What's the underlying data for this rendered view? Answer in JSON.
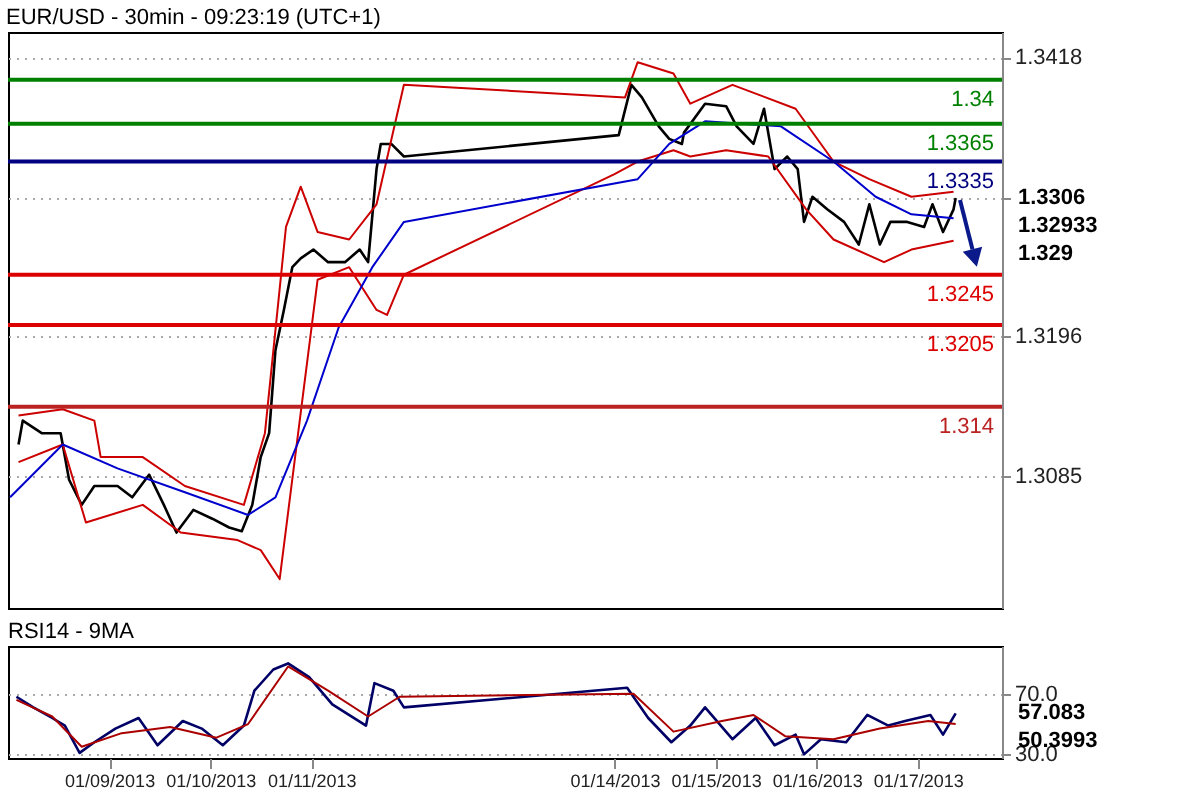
{
  "chart_data": [
    {
      "type": "line",
      "title": "EUR/USD - 30min - 09:23:19 (UTC+1)",
      "xlim": [
        "2013-01-08T00:00",
        "2013-01-17T20:00"
      ],
      "ylim": [
        1.298,
        1.3438
      ],
      "yticks": [
        1.3085,
        1.3196,
        {
          "value": 1.3306,
          "label": null
        },
        1.3418
      ],
      "grid": "y",
      "tick_labels": "y",
      "series": [
        {
          "color": "#000000",
          "x": [
            "2013-01-08T02:30",
            "2013-01-08T03:30",
            "2013-01-08T08:00",
            "2013-01-08T12:30",
            "2013-01-08T14:30",
            "2013-01-08T17:30",
            "2013-01-08T20:30",
            "2013-01-09T02:00",
            "2013-01-09T05:30",
            "2013-01-09T09:30",
            "2013-01-09T13:00",
            "2013-01-09T16:00",
            "2013-01-09T20:00",
            "2013-01-10T00:30",
            "2013-01-10T04:30",
            "2013-01-10T07:30",
            "2013-01-10T10:00",
            "2013-01-10T12:00",
            "2013-01-10T14:00",
            "2013-01-10T15:30",
            "2013-01-10T17:30",
            "2013-01-10T19:30",
            "2013-01-10T21:30",
            "2013-01-11T00:30",
            "2013-01-11T04:00",
            "2013-01-11T08:00",
            "2013-01-11T11:30",
            "2013-01-11T13:30",
            "2013-01-11T15:30",
            "2013-01-11T16:30",
            "2013-01-11T19:00",
            "2013-01-11T22:00",
            "2013-01-14T01:00",
            "2013-01-14T04:00",
            "2013-01-14T06:30",
            "2013-01-14T10:30",
            "2013-01-14T13:00",
            "2013-01-14T16:00",
            "2013-01-14T16:30",
            "2013-01-14T21:30",
            "2013-01-15T02:30",
            "2013-01-15T05:00",
            "2013-01-15T09:00",
            "2013-01-15T11:30",
            "2013-01-15T14:00",
            "2013-01-15T17:00",
            "2013-01-15T19:30",
            "2013-01-15T21:00",
            "2013-01-15T23:00",
            "2013-01-16T02:30",
            "2013-01-16T06:30",
            "2013-01-16T10:00",
            "2013-01-16T12:30",
            "2013-01-16T15:00",
            "2013-01-16T17:30",
            "2013-01-16T21:30",
            "2013-01-17T01:30",
            "2013-01-17T03:30",
            "2013-01-17T06:00",
            "2013-01-17T08:30",
            "2013-01-17T09:00"
          ],
          "values": [
            1.311,
            1.3129,
            1.3119,
            1.3119,
            1.3082,
            1.3062,
            1.3077,
            1.3077,
            1.3068,
            1.3086,
            1.3062,
            1.304,
            1.3058,
            1.3051,
            1.3044,
            1.3041,
            1.3062,
            1.31,
            1.3119,
            1.3185,
            1.3217,
            1.3251,
            1.3258,
            1.3265,
            1.3255,
            1.3255,
            1.3265,
            1.3255,
            1.3329,
            1.3349,
            1.3349,
            1.3339,
            1.3356,
            1.3396,
            1.3386,
            1.3363,
            1.3353,
            1.3349,
            1.3358,
            1.3381,
            1.3379,
            1.3363,
            1.3349,
            1.3377,
            1.3329,
            1.3339,
            1.3329,
            1.3287,
            1.3307,
            1.3297,
            1.3287,
            1.3269,
            1.3301,
            1.3269,
            1.3287,
            1.3287,
            1.3283,
            1.3301,
            1.3279,
            1.3297,
            1.3306
          ]
        },
        {
          "color": "#cc0000",
          "x": [
            "2013-01-08T02:30",
            "2013-01-08T13:00",
            "2013-01-08T20:30",
            "2013-01-08T22:00",
            "2013-01-09T08:00",
            "2013-01-09T18:00",
            "2013-01-10T08:00",
            "2013-01-10T13:00",
            "2013-01-10T18:00",
            "2013-01-10T21:30",
            "2013-01-11T01:30",
            "2013-01-11T09:00",
            "2013-01-11T15:30",
            "2013-01-11T22:00",
            "2013-01-14T02:30",
            "2013-01-14T05:30",
            "2013-01-14T14:00",
            "2013-01-14T18:00",
            "2013-01-15T04:00",
            "2013-01-15T19:00",
            "2013-01-16T04:00",
            "2013-01-16T12:30",
            "2013-01-16T22:30",
            "2013-01-17T08:30"
          ],
          "values": [
            1.3133,
            1.3138,
            1.3129,
            1.31,
            1.31,
            1.3077,
            1.3062,
            1.3119,
            1.3283,
            1.3315,
            1.3279,
            1.3273,
            1.3301,
            1.3396,
            1.3386,
            1.3414,
            1.3405,
            1.3381,
            1.3396,
            1.3377,
            1.3335,
            1.3321,
            1.3307,
            1.3311
          ]
        },
        {
          "color": "#cc0000",
          "x": [
            "2013-01-08T02:30",
            "2013-01-08T13:00",
            "2013-01-08T18:30",
            "2013-01-09T08:00",
            "2013-01-09T17:00",
            "2013-01-10T06:30",
            "2013-01-10T12:00",
            "2013-01-10T16:30",
            "2013-01-10T23:00",
            "2013-01-11T01:30",
            "2013-01-11T09:00",
            "2013-01-11T15:30",
            "2013-01-11T18:00",
            "2013-01-11T22:00",
            "2013-01-14T00:00",
            "2013-01-14T05:30",
            "2013-01-14T14:00",
            "2013-01-14T18:00",
            "2013-01-15T02:30",
            "2013-01-15T12:30",
            "2013-01-15T21:30",
            "2013-01-16T04:00",
            "2013-01-16T16:00",
            "2013-01-16T22:30",
            "2013-01-17T08:30"
          ],
          "values": [
            1.3096,
            1.311,
            1.3048,
            1.3062,
            1.304,
            1.3034,
            1.3026,
            1.3003,
            1.3175,
            1.3241,
            1.3251,
            1.3217,
            1.3213,
            1.3245,
            1.3325,
            1.3335,
            1.3344,
            1.3339,
            1.3344,
            1.3339,
            1.3297,
            1.3273,
            1.3255,
            1.3265,
            1.3272
          ]
        },
        {
          "color": "#0000cc",
          "x": [
            "2013-01-08T00:30",
            "2013-01-08T13:00",
            "2013-01-09T02:00",
            "2013-01-09T18:00",
            "2013-01-10T09:00",
            "2013-01-10T15:30",
            "2013-01-10T23:00",
            "2013-01-11T06:30",
            "2013-01-11T14:30",
            "2013-01-11T22:00",
            "2013-01-14T05:30",
            "2013-01-14T13:00",
            "2013-01-14T21:30",
            "2013-01-15T15:30",
            "2013-01-16T04:00",
            "2013-01-16T14:00",
            "2013-01-16T22:30",
            "2013-01-17T08:30"
          ],
          "values": [
            1.3068,
            1.311,
            1.3091,
            1.3072,
            1.3054,
            1.3068,
            1.3129,
            1.3203,
            1.3251,
            1.3287,
            1.3321,
            1.3349,
            1.3367,
            1.3363,
            1.3335,
            1.3307,
            1.3293,
            1.329
          ]
        }
      ],
      "ref_lines": [
        {
          "axis": "y",
          "value": 1.34,
          "label": "1.34",
          "color": "#008000"
        },
        {
          "axis": "y",
          "value": 1.3365,
          "label": "1.3365",
          "color": "#008000"
        },
        {
          "axis": "y",
          "value": 1.3335,
          "label": "1.3335",
          "color": "#000080"
        },
        {
          "axis": "y",
          "value": 1.3245,
          "label": "1.3245",
          "color": "#dd0000"
        },
        {
          "axis": "y",
          "value": 1.3205,
          "label": "1.3205",
          "color": "#dd0000"
        },
        {
          "axis": "y",
          "value": 1.314,
          "label": "1.314",
          "color": "#bb2222"
        }
      ],
      "annotations": [
        "1.3306",
        "1.32933",
        "1.329"
      ]
    },
    {
      "type": "line",
      "title": "RSI14 - 9MA",
      "xlim": [
        "2013-01-08T00:00",
        "2013-01-17T20:00"
      ],
      "ylim": [
        27.6,
        101.5
      ],
      "xticks": [
        {
          "value": "2013-01-09",
          "label": "01/09/2013"
        },
        {
          "value": "2013-01-10",
          "label": "01/10/2013"
        },
        {
          "value": "2013-01-11",
          "label": "01/11/2013"
        },
        {
          "value": "2013-01-14",
          "label": "01/14/2013"
        },
        {
          "value": "2013-01-15",
          "label": "01/15/2013"
        },
        {
          "value": "2013-01-16",
          "label": "01/16/2013"
        },
        {
          "value": "2013-01-17",
          "label": "01/17/2013"
        }
      ],
      "yticks": [
        {
          "value": 30,
          "label": "30.0"
        },
        {
          "value": 70,
          "label": "70.0"
        }
      ],
      "grid": "y",
      "series": [
        {
          "color": "#000066",
          "x": [
            "2013-01-08T02:00",
            "2013-01-08T06:00",
            "2013-01-08T10:30",
            "2013-01-08T13:30",
            "2013-01-08T17:00",
            "2013-01-08T20:30",
            "2013-01-09T01:30",
            "2013-01-09T07:00",
            "2013-01-09T11:30",
            "2013-01-09T17:30",
            "2013-01-09T22:00",
            "2013-01-10T03:00",
            "2013-01-10T08:00",
            "2013-01-10T10:30",
            "2013-01-10T15:00",
            "2013-01-10T18:30",
            "2013-01-10T23:30",
            "2013-01-11T05:00",
            "2013-01-11T13:00",
            "2013-01-11T15:00",
            "2013-01-11T19:30",
            "2013-01-11T22:00",
            "2013-01-14T03:00",
            "2013-01-14T08:00",
            "2013-01-14T13:30",
            "2013-01-14T18:00",
            "2013-01-14T21:30",
            "2013-01-15T04:00",
            "2013-01-15T09:30",
            "2013-01-15T14:00",
            "2013-01-15T19:00",
            "2013-01-15T21:00",
            "2013-01-16T01:00",
            "2013-01-16T07:00",
            "2013-01-16T12:00",
            "2013-01-16T17:00",
            "2013-01-16T21:00",
            "2013-01-17T03:00",
            "2013-01-17T06:00",
            "2013-01-17T09:00"
          ],
          "values": [
            68,
            61,
            54,
            49,
            31,
            38,
            47,
            54,
            36,
            52,
            47,
            36,
            49,
            72,
            86,
            90,
            81,
            63,
            49,
            77,
            72,
            61,
            74,
            54,
            38,
            49,
            61,
            40,
            54,
            36,
            43,
            30,
            40,
            38,
            56,
            49,
            52,
            56,
            43,
            57
          ]
        },
        {
          "color": "#aa0000",
          "x": [
            "2013-01-08T02:00",
            "2013-01-08T10:30",
            "2013-01-08T17:30",
            "2013-01-09T03:00",
            "2013-01-09T14:30",
            "2013-01-10T01:30",
            "2013-01-10T09:00",
            "2013-01-10T18:30",
            "2013-01-11T04:00",
            "2013-01-11T13:30",
            "2013-01-11T21:00",
            "2013-01-14T04:30",
            "2013-01-14T14:00",
            "2013-01-15T01:30",
            "2013-01-15T09:00",
            "2013-01-15T16:30",
            "2013-01-16T04:00",
            "2013-01-16T15:00",
            "2013-01-17T02:30",
            "2013-01-17T09:00"
          ],
          "values": [
            66,
            55,
            35,
            44,
            48,
            41,
            50,
            88,
            72,
            55,
            68,
            70,
            45,
            52,
            56,
            42,
            40,
            47,
            52,
            50
          ]
        }
      ],
      "annotations": [
        "57.083",
        "50.3993"
      ]
    }
  ]
}
